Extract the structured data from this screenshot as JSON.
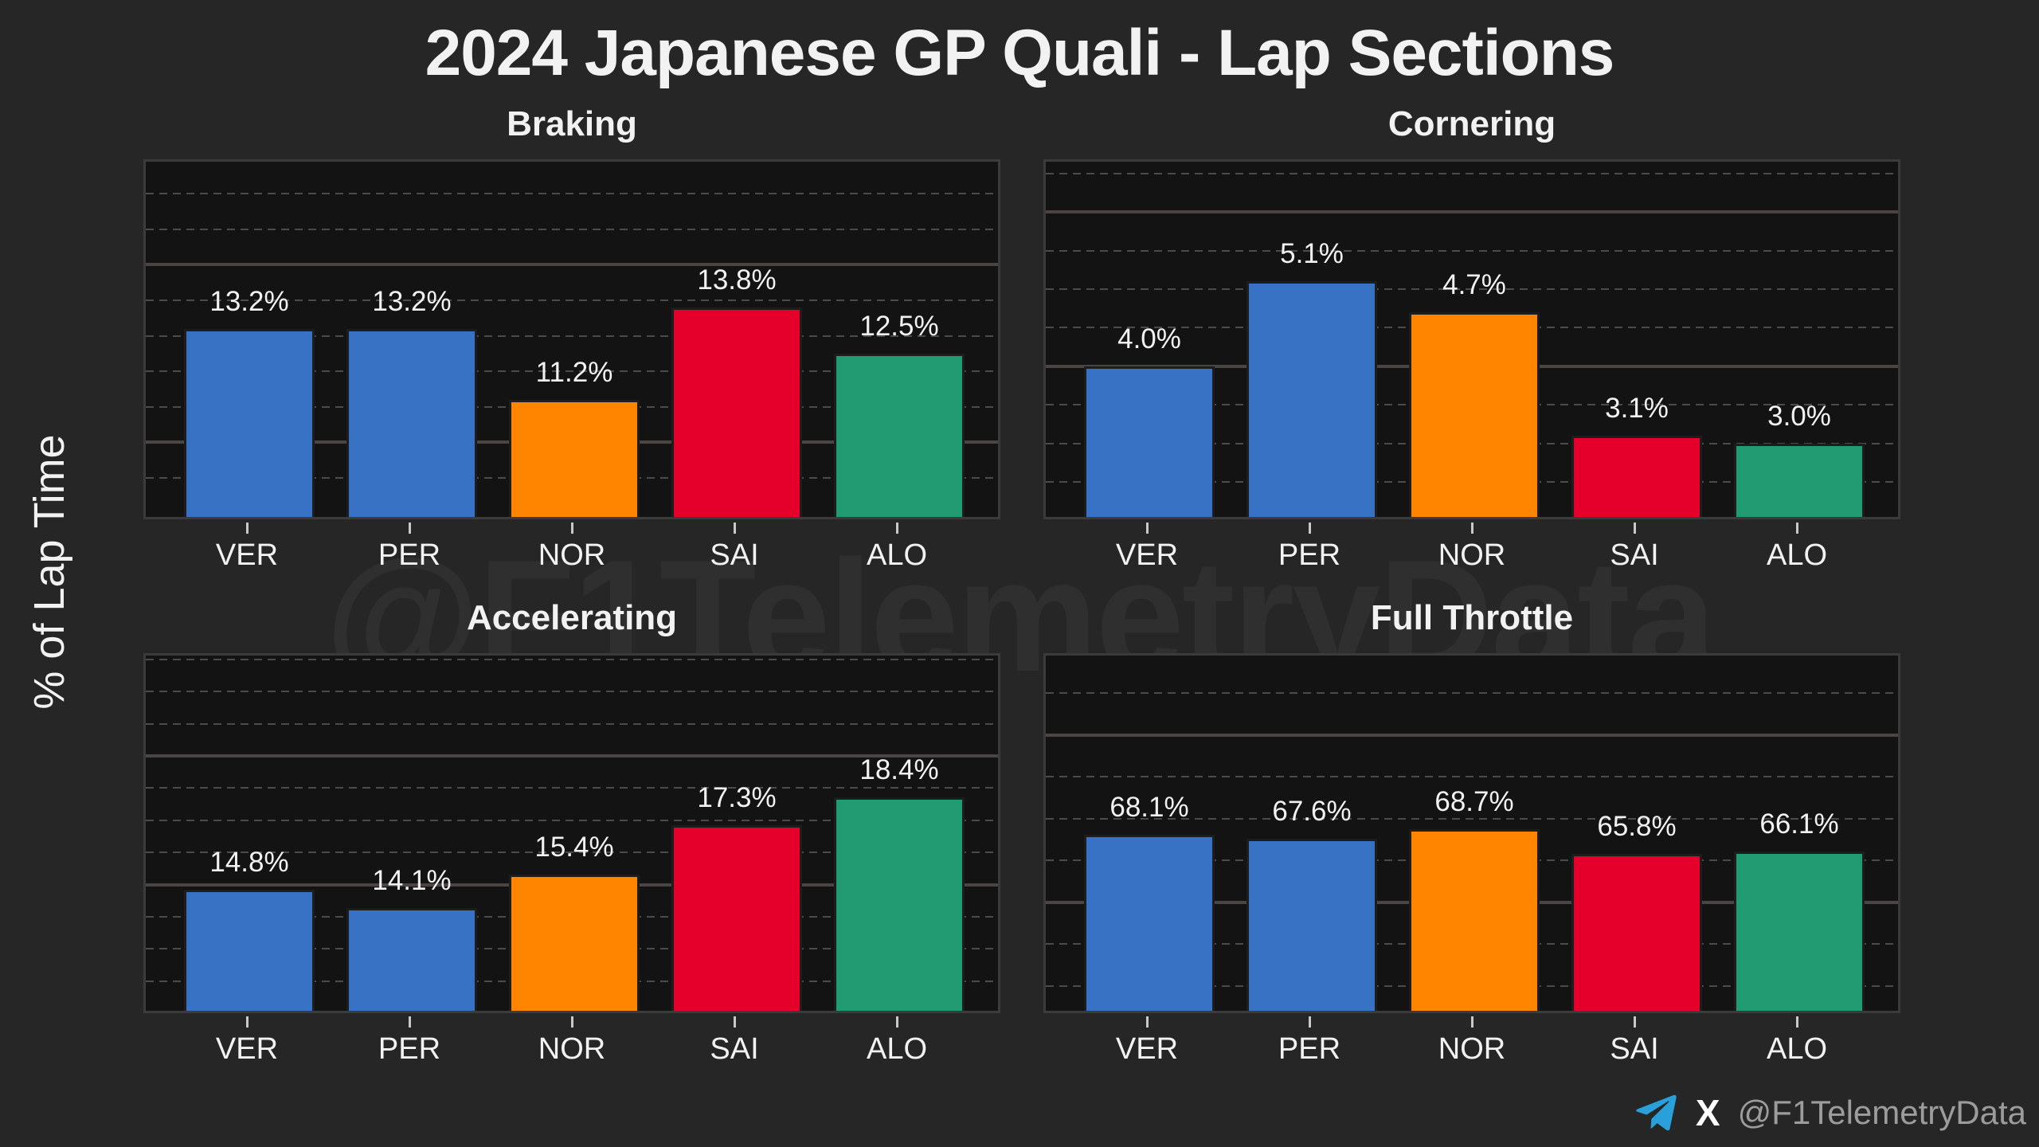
{
  "page": {
    "title": "2024 Japanese GP Quali - Lap Sections",
    "ylabel": "% of Lap Time",
    "watermark": "@F1TelemetryData",
    "footer": {
      "handle": "@F1TelemetryData",
      "x_label": "X"
    }
  },
  "colors": {
    "background": "#262626",
    "plot_background": "#131313",
    "text": "#f2f2f2",
    "muted_text": "#9c9c9c",
    "grid_minor": "#4b4b4b",
    "grid_major": "#4a4542",
    "border": "#3b3b3b",
    "watermark": "#2f2f2f",
    "bar_edge": "#1d1d1d",
    "tick": "#c9c9c9",
    "telegram": "#2aa0da",
    "driver_blue": "#3772c4",
    "driver_orange": "#ff8400",
    "driver_red": "#e4002b",
    "driver_green": "#229a72"
  },
  "chart_data": [
    {
      "type": "bar",
      "title": "Braking",
      "categories": [
        "VER",
        "PER",
        "NOR",
        "SAI",
        "ALO"
      ],
      "values": [
        13.2,
        13.2,
        11.2,
        13.8,
        12.5
      ],
      "labels": [
        "13.2%",
        "13.2%",
        "11.2%",
        "13.8%",
        "12.5%"
      ],
      "bar_colors": [
        "#3772c4",
        "#3772c4",
        "#ff8400",
        "#e4002b",
        "#229a72"
      ],
      "ylim": [
        7.9,
        17.9
      ],
      "grid_major_values": [
        10,
        15
      ],
      "grid_minor_step": 1,
      "grid_style": "minor dashed, major solid",
      "legend": "none",
      "unit": "%"
    },
    {
      "type": "bar",
      "title": "Cornering",
      "categories": [
        "VER",
        "PER",
        "NOR",
        "SAI",
        "ALO"
      ],
      "values": [
        4.0,
        5.1,
        4.7,
        3.1,
        3.0
      ],
      "labels": [
        "4.0%",
        "5.1%",
        "4.7%",
        "3.1%",
        "3.0%"
      ],
      "bar_colors": [
        "#3772c4",
        "#3772c4",
        "#ff8400",
        "#e4002b",
        "#229a72"
      ],
      "ylim": [
        2.05,
        6.65
      ],
      "grid_major_values": [
        4,
        6
      ],
      "grid_minor_step": 0.5,
      "grid_style": "minor dashed, major solid",
      "legend": "none",
      "unit": "%"
    },
    {
      "type": "bar",
      "title": "Accelerating",
      "categories": [
        "VER",
        "PER",
        "NOR",
        "SAI",
        "ALO"
      ],
      "values": [
        14.8,
        14.1,
        15.4,
        17.3,
        18.4
      ],
      "labels": [
        "14.8%",
        "14.1%",
        "15.4%",
        "17.3%",
        "18.4%"
      ],
      "bar_colors": [
        "#3772c4",
        "#3772c4",
        "#ff8400",
        "#e4002b",
        "#229a72"
      ],
      "ylim": [
        10.1,
        23.9
      ],
      "grid_major_values": [
        15,
        20
      ],
      "grid_minor_step": 1.25,
      "grid_style": "minor dashed, major solid",
      "legend": "none",
      "unit": "%"
    },
    {
      "type": "bar",
      "title": "Full Throttle",
      "categories": [
        "VER",
        "PER",
        "NOR",
        "SAI",
        "ALO"
      ],
      "values": [
        68.1,
        67.6,
        68.7,
        65.8,
        66.1
      ],
      "labels": [
        "68.1%",
        "67.6%",
        "68.7%",
        "65.8%",
        "66.1%"
      ],
      "bar_colors": [
        "#3772c4",
        "#3772c4",
        "#ff8400",
        "#e4002b",
        "#229a72"
      ],
      "ylim": [
        47,
        89.5
      ],
      "grid_major_values": [
        60,
        80
      ],
      "grid_minor_step": 5,
      "grid_style": "minor dashed, major solid",
      "legend": "none",
      "unit": "%"
    }
  ]
}
